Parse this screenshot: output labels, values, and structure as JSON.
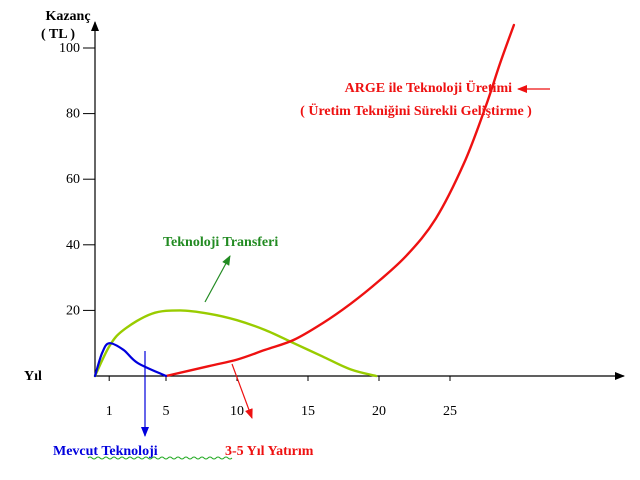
{
  "chart_data": {
    "type": "line",
    "ylabel_line1": "Kazanç",
    "ylabel_line2": "( TL )",
    "xlabel": "Yıl",
    "y_ticks": [
      "20",
      "40",
      "60",
      "80",
      "100"
    ],
    "x_ticks": [
      "1",
      "5",
      "10",
      "15",
      "20",
      "25"
    ],
    "series": [
      {
        "key": "mevcut",
        "name": "Mevcut Teknoloji",
        "color": "#0000dd",
        "x": [
          0,
          0.5,
          1,
          2,
          3,
          5
        ],
        "y": [
          0,
          7,
          10,
          8,
          4,
          0
        ]
      },
      {
        "key": "transfer",
        "name": "Teknoloji Transferi",
        "color": "#99cc00",
        "x": [
          0,
          1,
          2,
          4,
          6,
          8,
          10,
          12,
          14,
          16,
          18,
          19.8
        ],
        "y": [
          0,
          9,
          14,
          19,
          20,
          19,
          17,
          14,
          10,
          6,
          2,
          0
        ]
      },
      {
        "key": "arge",
        "name": "ARGE ile Teknoloji Üretimi",
        "color": "#ee1111",
        "x": [
          5,
          8,
          10,
          12,
          14,
          16,
          18,
          20,
          22,
          24,
          26,
          27.5,
          28.5,
          29.5
        ],
        "y": [
          0,
          3,
          5,
          8,
          11,
          16,
          22,
          29,
          37,
          48,
          65,
          82,
          95,
          107
        ]
      }
    ],
    "annotations": {
      "arge_line1": "ARGE ile Teknoloji Üretimi",
      "arge_line2": "( Üretim Tekniğini Sürekli Geliştirme )",
      "transfer": "Teknoloji Transferi",
      "mevcut": "Mevcut Teknoloji",
      "yatirim": "3-5 Yıl Yatırım"
    },
    "colors": {
      "blue": "#0000dd",
      "green": "#99cc00",
      "red": "#ee1111",
      "green_text": "#228b22",
      "axis": "#000000"
    }
  }
}
